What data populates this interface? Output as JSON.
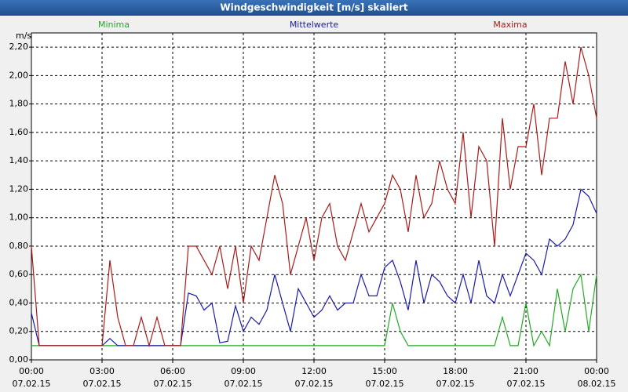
{
  "chart_data": {
    "type": "line",
    "title": "Windgeschwindigkeit [m/s] skaliert",
    "y_label": "m/s",
    "x": [
      "07.02.15 00:00",
      "07.02.15 00:20",
      "07.02.15 00:40",
      "07.02.15 01:00",
      "07.02.15 01:20",
      "07.02.15 01:40",
      "07.02.15 02:00",
      "07.02.15 02:20",
      "07.02.15 02:40",
      "07.02.15 03:00",
      "07.02.15 03:20",
      "07.02.15 03:40",
      "07.02.15 04:00",
      "07.02.15 04:20",
      "07.02.15 04:40",
      "07.02.15 05:00",
      "07.02.15 05:20",
      "07.02.15 05:40",
      "07.02.15 06:00",
      "07.02.15 06:20",
      "07.02.15 06:40",
      "07.02.15 07:00",
      "07.02.15 07:20",
      "07.02.15 07:40",
      "07.02.15 08:00",
      "07.02.15 08:20",
      "07.02.15 08:40",
      "07.02.15 09:00",
      "07.02.15 09:20",
      "07.02.15 09:40",
      "07.02.15 10:00",
      "07.02.15 10:20",
      "07.02.15 10:40",
      "07.02.15 11:00",
      "07.02.15 11:20",
      "07.02.15 11:40",
      "07.02.15 12:00",
      "07.02.15 12:20",
      "07.02.15 12:40",
      "07.02.15 13:00",
      "07.02.15 13:20",
      "07.02.15 13:40",
      "07.02.15 14:00",
      "07.02.15 14:20",
      "07.02.15 14:40",
      "07.02.15 15:00",
      "07.02.15 15:20",
      "07.02.15 15:40",
      "07.02.15 16:00",
      "07.02.15 16:20",
      "07.02.15 16:40",
      "07.02.15 17:00",
      "07.02.15 17:20",
      "07.02.15 17:40",
      "07.02.15 18:00",
      "07.02.15 18:20",
      "07.02.15 18:40",
      "07.02.15 19:00",
      "07.02.15 19:20",
      "07.02.15 19:40",
      "07.02.15 20:00",
      "07.02.15 20:20",
      "07.02.15 20:40",
      "07.02.15 21:00",
      "07.02.15 21:20",
      "07.02.15 21:40",
      "07.02.15 22:00",
      "07.02.15 22:20",
      "07.02.15 22:40",
      "07.02.15 23:00",
      "07.02.15 23:20",
      "07.02.15 23:40",
      "08.02.15 00:00"
    ],
    "series": [
      {
        "name": "Minima",
        "color": "#22aa22",
        "values": [
          0.1,
          0.1,
          0.1,
          0.1,
          0.1,
          0.1,
          0.1,
          0.1,
          0.1,
          0.1,
          0.1,
          0.1,
          0.1,
          0.1,
          0.1,
          0.1,
          0.1,
          0.1,
          0.1,
          0.1,
          0.1,
          0.1,
          0.1,
          0.1,
          0.1,
          0.1,
          0.1,
          0.1,
          0.1,
          0.1,
          0.1,
          0.1,
          0.1,
          0.1,
          0.1,
          0.1,
          0.1,
          0.1,
          0.1,
          0.1,
          0.1,
          0.1,
          0.1,
          0.1,
          0.1,
          0.1,
          0.4,
          0.2,
          0.1,
          0.1,
          0.1,
          0.1,
          0.1,
          0.1,
          0.1,
          0.1,
          0.1,
          0.1,
          0.1,
          0.1,
          0.3,
          0.1,
          0.1,
          0.4,
          0.1,
          0.2,
          0.1,
          0.5,
          0.2,
          0.5,
          0.6,
          0.2,
          0.6
        ]
      },
      {
        "name": "Mittelwerte",
        "color": "#1a1aaa",
        "values": [
          0.33,
          0.1,
          0.1,
          0.1,
          0.1,
          0.1,
          0.1,
          0.1,
          0.1,
          0.1,
          0.15,
          0.1,
          0.1,
          0.1,
          0.1,
          0.1,
          0.1,
          0.1,
          0.1,
          0.1,
          0.47,
          0.45,
          0.35,
          0.4,
          0.12,
          0.13,
          0.38,
          0.2,
          0.3,
          0.25,
          0.35,
          0.6,
          0.4,
          0.2,
          0.5,
          0.4,
          0.3,
          0.35,
          0.45,
          0.35,
          0.4,
          0.4,
          0.6,
          0.45,
          0.45,
          0.65,
          0.7,
          0.55,
          0.35,
          0.7,
          0.4,
          0.6,
          0.55,
          0.45,
          0.4,
          0.6,
          0.4,
          0.7,
          0.45,
          0.4,
          0.6,
          0.45,
          0.6,
          0.75,
          0.7,
          0.6,
          0.85,
          0.8,
          0.85,
          0.95,
          1.2,
          1.15,
          1.03
        ]
      },
      {
        "name": "Maxima",
        "color": "#aa1a1a",
        "values": [
          0.8,
          0.1,
          0.1,
          0.1,
          0.1,
          0.1,
          0.1,
          0.1,
          0.1,
          0.1,
          0.7,
          0.3,
          0.1,
          0.1,
          0.3,
          0.1,
          0.3,
          0.1,
          0.1,
          0.1,
          0.8,
          0.8,
          0.7,
          0.6,
          0.8,
          0.5,
          0.8,
          0.4,
          0.8,
          0.7,
          1.0,
          1.3,
          1.1,
          0.6,
          0.8,
          1.0,
          0.7,
          1.0,
          1.1,
          0.8,
          0.7,
          0.9,
          1.1,
          0.9,
          1.0,
          1.1,
          1.3,
          1.2,
          0.9,
          1.3,
          1.0,
          1.1,
          1.4,
          1.2,
          1.1,
          1.6,
          1.0,
          1.5,
          1.4,
          0.8,
          1.7,
          1.2,
          1.5,
          1.5,
          1.8,
          1.3,
          1.7,
          1.7,
          2.1,
          1.8,
          2.2,
          2.0,
          1.7
        ]
      }
    ],
    "xlim": [
      "07.02.15 00:00",
      "08.02.15 00:00"
    ],
    "xticks": [
      {
        "value": "07.02.15 00:00",
        "label": [
          "00:00",
          "07.02.15"
        ]
      },
      {
        "value": "07.02.15 03:00",
        "label": [
          "03:00",
          "07.02.15"
        ]
      },
      {
        "value": "07.02.15 06:00",
        "label": [
          "06:00",
          "07.02.15"
        ]
      },
      {
        "value": "07.02.15 09:00",
        "label": [
          "09:00",
          "07.02.15"
        ]
      },
      {
        "value": "07.02.15 12:00",
        "label": [
          "12:00",
          "07.02.15"
        ]
      },
      {
        "value": "07.02.15 15:00",
        "label": [
          "15:00",
          "07.02.15"
        ]
      },
      {
        "value": "07.02.15 18:00",
        "label": [
          "18:00",
          "07.02.15"
        ]
      },
      {
        "value": "07.02.15 21:00",
        "label": [
          "21:00",
          "07.02.15"
        ]
      },
      {
        "value": "08.02.15 00:00",
        "label": [
          "00:00",
          "08.02.15"
        ]
      }
    ],
    "ylim": [
      0,
      2.3
    ],
    "yticks": [
      {
        "value": 0,
        "label": "0,00"
      },
      {
        "value": 0.2,
        "label": "0,20"
      },
      {
        "value": 0.4,
        "label": "0,40"
      },
      {
        "value": 0.6,
        "label": "0,60"
      },
      {
        "value": 0.8,
        "label": "0,80"
      },
      {
        "value": 1.0,
        "label": "1,00"
      },
      {
        "value": 1.2,
        "label": "1,20"
      },
      {
        "value": 1.4,
        "label": "1,40"
      },
      {
        "value": 1.6,
        "label": "1,60"
      },
      {
        "value": 1.8,
        "label": "1,80"
      },
      {
        "value": 2.0,
        "label": "2,00"
      },
      {
        "value": 2.2,
        "label": "2,20"
      }
    ],
    "grid": true
  }
}
